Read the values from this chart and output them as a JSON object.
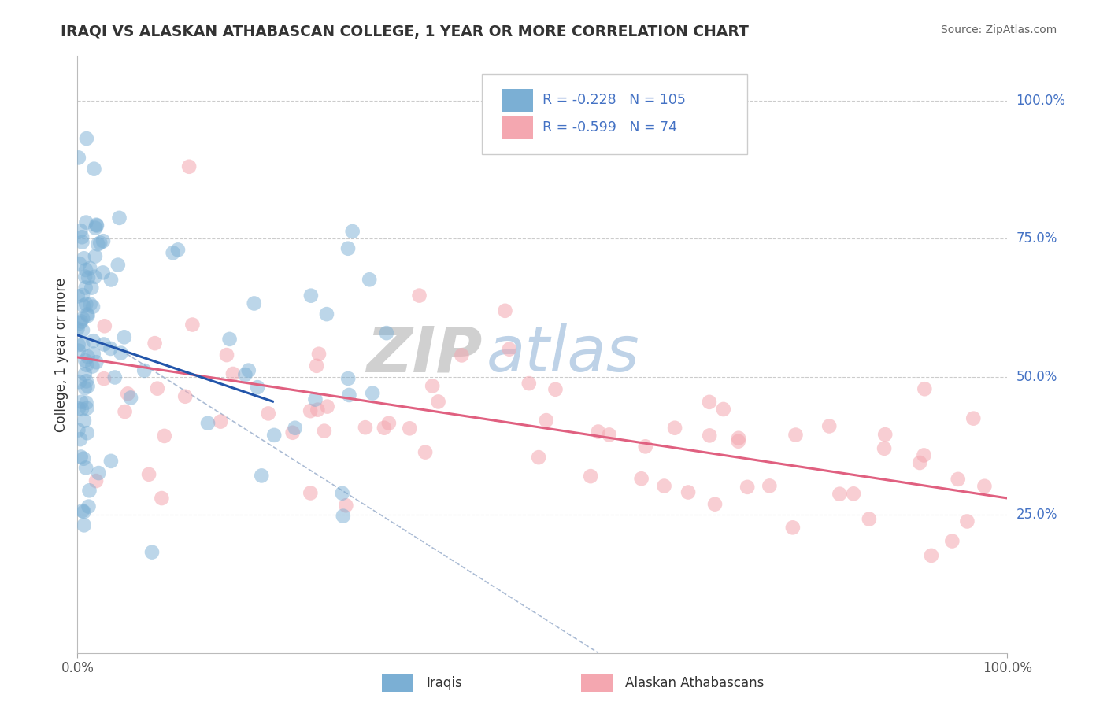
{
  "title": "IRAQI VS ALASKAN ATHABASCAN COLLEGE, 1 YEAR OR MORE CORRELATION CHART",
  "source": "Source: ZipAtlas.com",
  "ylabel": "College, 1 year or more",
  "legend_iraqis_label": "Iraqis",
  "legend_athabascan_label": "Alaskan Athabascans",
  "R_iraqis": -0.228,
  "N_iraqis": 105,
  "R_athabascan": -0.599,
  "N_athabascan": 74,
  "y_tick_labels": [
    "25.0%",
    "50.0%",
    "75.0%",
    "100.0%"
  ],
  "y_tick_values": [
    0.25,
    0.5,
    0.75,
    1.0
  ],
  "x_range": [
    0.0,
    1.0
  ],
  "y_range": [
    0.0,
    1.08
  ],
  "blue_color": "#7bafd4",
  "pink_color": "#f4a7b0",
  "blue_line_color": "#2255aa",
  "pink_line_color": "#e06080",
  "dash_line_color": "#aabbd4",
  "background_color": "#ffffff",
  "grid_color": "#cccccc",
  "title_color": "#333333",
  "label_color": "#4472c4",
  "scatter_size": 180,
  "blue_scatter_alpha": 0.5,
  "pink_scatter_alpha": 0.55,
  "blue_line_x": [
    0.0,
    0.21
  ],
  "blue_line_y": [
    0.575,
    0.455
  ],
  "pink_line_x": [
    0.0,
    1.0
  ],
  "pink_line_y": [
    0.535,
    0.28
  ],
  "dash_line_x": [
    0.04,
    0.56
  ],
  "dash_line_y": [
    0.555,
    0.0
  ]
}
